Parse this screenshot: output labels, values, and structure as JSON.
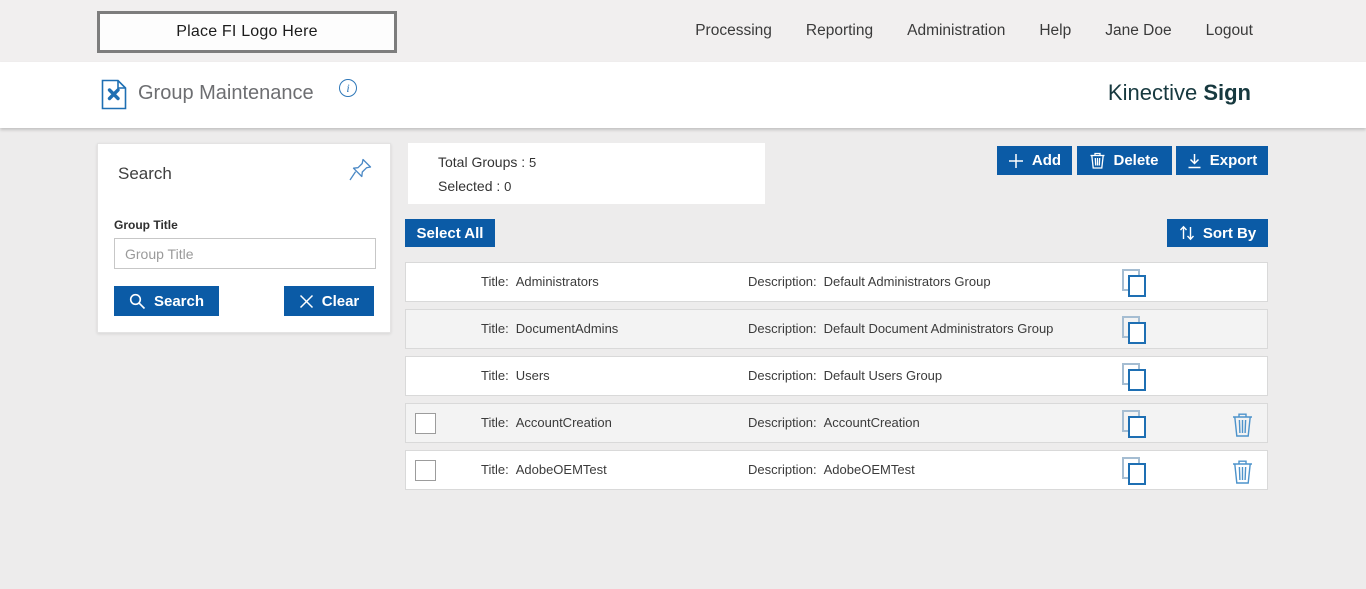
{
  "header": {
    "logo_placeholder": "Place FI Logo Here",
    "nav": [
      "Processing",
      "Reporting",
      "Administration",
      "Help",
      "Jane Doe",
      "Logout"
    ]
  },
  "subheader": {
    "title": "Group Maintenance",
    "info_glyph": "i",
    "brand_name": "Kinective",
    "brand_product": "Sign"
  },
  "search_panel": {
    "title": "Search",
    "field_label": "Group Title",
    "field_placeholder": "Group Title",
    "field_value": "",
    "search_button": "Search",
    "clear_button": "Clear"
  },
  "summary": {
    "total_label": "Total Groups :",
    "total_value": "5",
    "selected_label": "Selected :",
    "selected_value": "0"
  },
  "toolbar": {
    "add_label": "Add",
    "delete_label": "Delete",
    "export_label": "Export",
    "select_all_label": "Select All",
    "sort_by_label": "Sort By"
  },
  "groups": {
    "title_prefix": "Title:",
    "description_prefix": "Description:",
    "rows": [
      {
        "title": "Administrators",
        "description": "Default Administrators Group",
        "has_checkbox": false,
        "deletable": false
      },
      {
        "title": "DocumentAdmins",
        "description": "Default Document Administrators Group",
        "has_checkbox": false,
        "deletable": false
      },
      {
        "title": "Users",
        "description": "Default Users Group",
        "has_checkbox": false,
        "deletable": false
      },
      {
        "title": "AccountCreation",
        "description": "AccountCreation",
        "has_checkbox": true,
        "deletable": true
      },
      {
        "title": "AdobeOEMTest",
        "description": "AdobeOEMTest",
        "has_checkbox": true,
        "deletable": true
      }
    ]
  },
  "colors": {
    "primary_blue": "#0b5ba6",
    "brand_teal": "#17393f",
    "icon_blue": "#1e6fb3",
    "light_icon_blue": "#4d93cb",
    "topbar_gray": "#f1efef",
    "page_gray": "#edecec"
  }
}
